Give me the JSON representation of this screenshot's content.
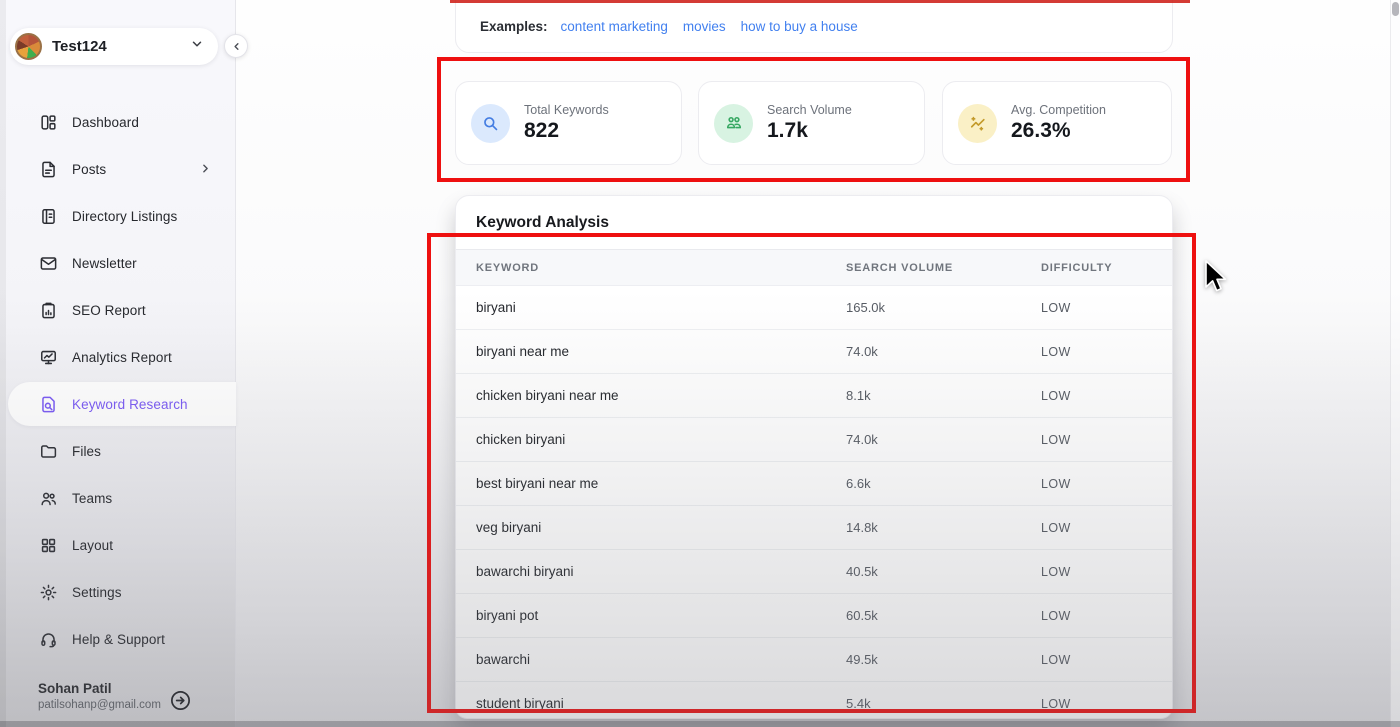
{
  "workspace": {
    "name": "Test124",
    "chevron_icon": "chevron-down-icon",
    "avatar_icon": "food-avatar"
  },
  "sidebar": {
    "collapse_icon": "chevron-left-icon",
    "items": [
      {
        "id": "dashboard",
        "label": "Dashboard",
        "icon": "dashboard-icon",
        "active": false,
        "has_submenu": false
      },
      {
        "id": "posts",
        "label": "Posts",
        "icon": "posts-icon",
        "active": false,
        "has_submenu": true
      },
      {
        "id": "directory-listings",
        "label": "Directory Listings",
        "icon": "directory-icon",
        "active": false,
        "has_submenu": false
      },
      {
        "id": "newsletter",
        "label": "Newsletter",
        "icon": "mail-icon",
        "active": false,
        "has_submenu": false
      },
      {
        "id": "seo-report",
        "label": "SEO Report",
        "icon": "clipboard-chart-icon",
        "active": false,
        "has_submenu": false
      },
      {
        "id": "analytics-report",
        "label": "Analytics Report",
        "icon": "monitor-chart-icon",
        "active": false,
        "has_submenu": false
      },
      {
        "id": "keyword-research",
        "label": "Keyword Research",
        "icon": "file-search-icon",
        "active": true,
        "has_submenu": false
      },
      {
        "id": "files",
        "label": "Files",
        "icon": "folder-icon",
        "active": false,
        "has_submenu": false
      },
      {
        "id": "teams",
        "label": "Teams",
        "icon": "users-icon",
        "active": false,
        "has_submenu": false
      },
      {
        "id": "layout",
        "label": "Layout",
        "icon": "grid-icon",
        "active": false,
        "has_submenu": false
      },
      {
        "id": "settings",
        "label": "Settings",
        "icon": "gear-icon",
        "active": false,
        "has_submenu": false
      },
      {
        "id": "help-support",
        "label": "Help & Support",
        "icon": "headset-icon",
        "active": false,
        "has_submenu": false
      }
    ],
    "user": {
      "name": "Sohan Patil",
      "email": "patilsohanp@gmail.com",
      "logout_icon": "arrow-right-circle-icon"
    }
  },
  "examples": {
    "label": "Examples:",
    "links": [
      "content marketing",
      "movies",
      "how to buy a house"
    ],
    "link_color": "#4280ef"
  },
  "stats": [
    {
      "label": "Total Keywords",
      "value": "822",
      "icon": "search-icon",
      "icon_bg": "#dbe9fd",
      "icon_color": "#447de2"
    },
    {
      "label": "Search Volume",
      "value": "1.7k",
      "icon": "users-icon",
      "icon_bg": "#d8f3e2",
      "icon_color": "#35a761"
    },
    {
      "label": "Avg. Competition",
      "value": "26.3%",
      "icon": "trend-sparkle-icon",
      "icon_bg": "#faf0c6",
      "icon_color": "#c39a2a"
    }
  ],
  "table": {
    "title": "Keyword Analysis",
    "columns": [
      "KEYWORD",
      "SEARCH VOLUME",
      "DIFFICULTY"
    ],
    "rows": [
      {
        "keyword": "biryani",
        "volume": "165.0k",
        "difficulty": "LOW"
      },
      {
        "keyword": "biryani near me",
        "volume": "74.0k",
        "difficulty": "LOW"
      },
      {
        "keyword": "chicken biryani near me",
        "volume": "8.1k",
        "difficulty": "LOW"
      },
      {
        "keyword": "chicken biryani",
        "volume": "74.0k",
        "difficulty": "LOW"
      },
      {
        "keyword": "best biryani near me",
        "volume": "6.6k",
        "difficulty": "LOW"
      },
      {
        "keyword": "veg biryani",
        "volume": "14.8k",
        "difficulty": "LOW"
      },
      {
        "keyword": "bawarchi biryani",
        "volume": "40.5k",
        "difficulty": "LOW"
      },
      {
        "keyword": "biryani pot",
        "volume": "60.5k",
        "difficulty": "LOW"
      },
      {
        "keyword": "bawarchi",
        "volume": "49.5k",
        "difficulty": "LOW"
      },
      {
        "keyword": "student biryani",
        "volume": "5.4k",
        "difficulty": "LOW"
      }
    ]
  },
  "annotations": {
    "color": "#ee1010",
    "count": 2
  },
  "accent_color": "#7a5af5"
}
